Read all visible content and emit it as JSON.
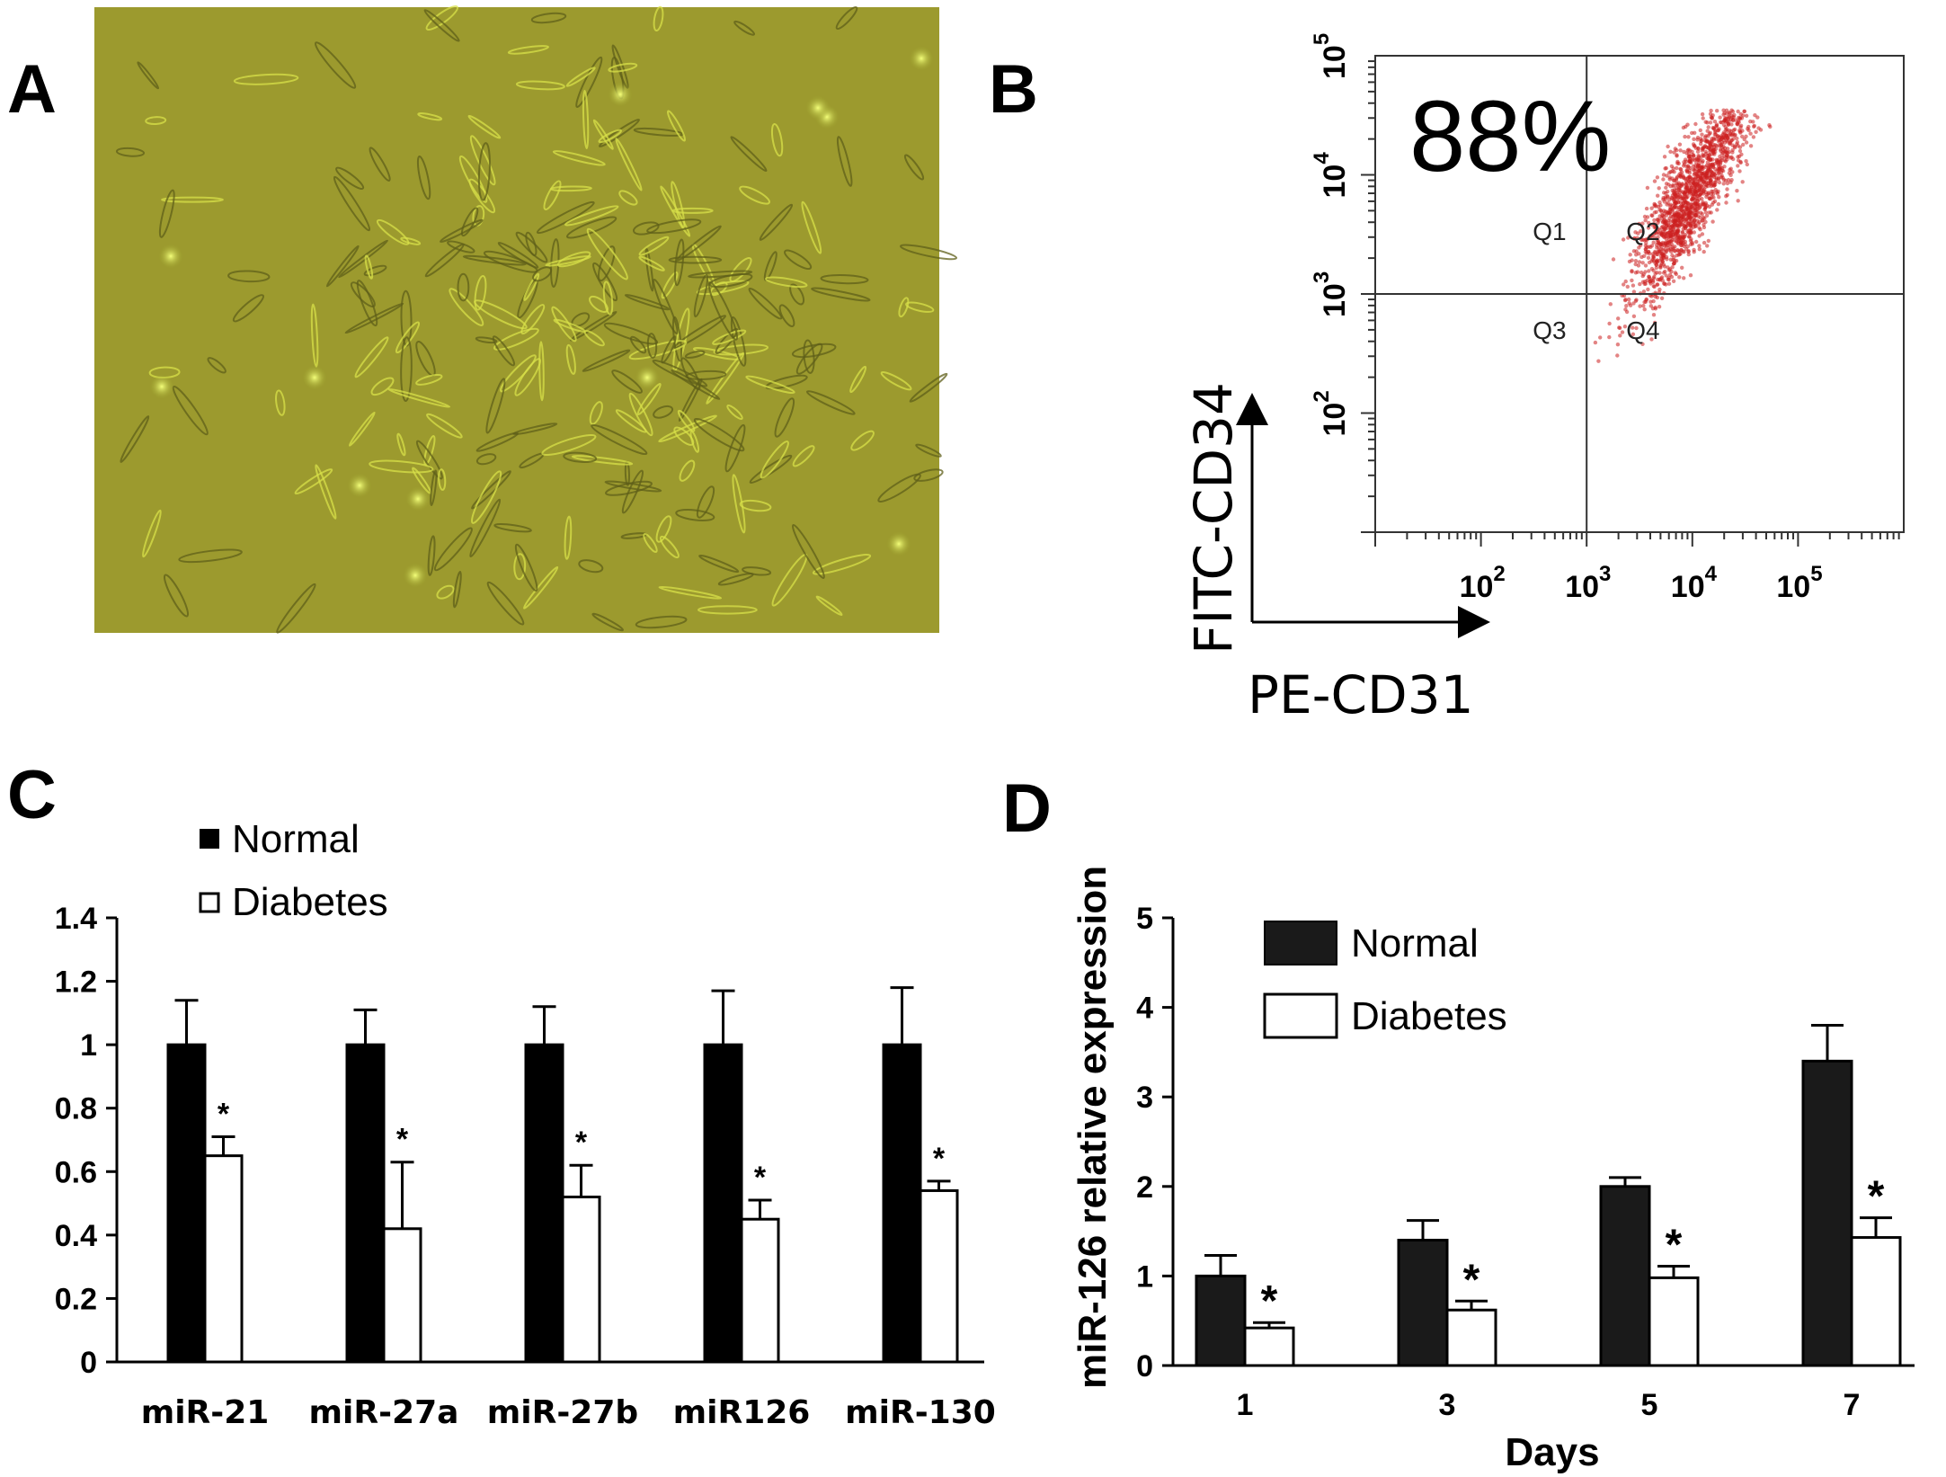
{
  "panels": {
    "a": {
      "letter": "A"
    },
    "b": {
      "letter": "B"
    },
    "c": {
      "letter": "C"
    },
    "d": {
      "letter": "D"
    }
  },
  "chart_data": [
    {
      "panel": "B",
      "type": "scatter",
      "gated_percent_label": "88%",
      "xlabel": "PE-CD31",
      "ylabel": "FITC-CD34",
      "x_scale": "log",
      "y_scale": "log",
      "xlim": [
        10,
        1000000
      ],
      "ylim": [
        10,
        100000
      ],
      "x_ticks": [
        {
          "base": "10",
          "exp": "2",
          "value": 100
        },
        {
          "base": "10",
          "exp": "3",
          "value": 1000
        },
        {
          "base": "10",
          "exp": "4",
          "value": 10000
        },
        {
          "base": "10",
          "exp": "5",
          "value": 100000
        }
      ],
      "y_ticks": [
        {
          "base": "10",
          "exp": "2",
          "value": 100
        },
        {
          "base": "10",
          "exp": "3",
          "value": 1000
        },
        {
          "base": "10",
          "exp": "4",
          "value": 10000
        },
        {
          "base": "10",
          "exp": "5",
          "value": 100000
        }
      ],
      "gate": {
        "x": 1000,
        "y": 1000
      },
      "quadrants": [
        "Q1",
        "Q2",
        "Q3",
        "Q4"
      ],
      "point_color": "#cc1f1f",
      "population": {
        "center_x": 10000,
        "center_y": 5000
      }
    },
    {
      "panel": "C",
      "type": "bar",
      "categories": [
        "miR-21",
        "miR-27a",
        "miR-27b",
        "miR126",
        "miR-130"
      ],
      "series": [
        {
          "name": "Normal",
          "values": [
            1.0,
            1.0,
            1.0,
            1.0,
            1.0
          ],
          "errors": [
            0.14,
            0.11,
            0.12,
            0.17,
            0.18
          ],
          "color": "#000000"
        },
        {
          "name": "Diabetes",
          "values": [
            0.65,
            0.42,
            0.52,
            0.45,
            0.54
          ],
          "errors": [
            0.06,
            0.21,
            0.1,
            0.06,
            0.03
          ],
          "color": "#ffffff"
        }
      ],
      "significance": [
        "*",
        "*",
        "*",
        "*",
        "*"
      ],
      "ylim": [
        0,
        1.4
      ],
      "yticks": [
        "0",
        "0.2",
        "0.4",
        "0.6",
        "0.8",
        "1",
        "1.2",
        "1.4"
      ],
      "ytick_values": [
        0,
        0.2,
        0.4,
        0.6,
        0.8,
        1.0,
        1.2,
        1.4
      ],
      "legend": "top-left",
      "xlabel": "",
      "ylabel": ""
    },
    {
      "panel": "D",
      "type": "bar",
      "categories": [
        "1",
        "3",
        "5",
        "7"
      ],
      "series": [
        {
          "name": "Normal",
          "values": [
            1.0,
            1.4,
            2.0,
            3.4
          ],
          "errors": [
            0.23,
            0.22,
            0.1,
            0.4
          ],
          "color": "#1a1a1a"
        },
        {
          "name": "Diabetes",
          "values": [
            0.42,
            0.62,
            0.98,
            1.43
          ],
          "errors": [
            0.06,
            0.1,
            0.13,
            0.22
          ],
          "color": "#ffffff"
        }
      ],
      "significance": [
        "*",
        "*",
        "*",
        "*"
      ],
      "ylim": [
        0,
        5
      ],
      "yticks": [
        "0",
        "1",
        "2",
        "3",
        "4",
        "5"
      ],
      "ytick_values": [
        0,
        1,
        2,
        3,
        4,
        5
      ],
      "xlabel": "Days",
      "ylabel": "miR-126 relative expression",
      "legend": "top-left"
    }
  ]
}
